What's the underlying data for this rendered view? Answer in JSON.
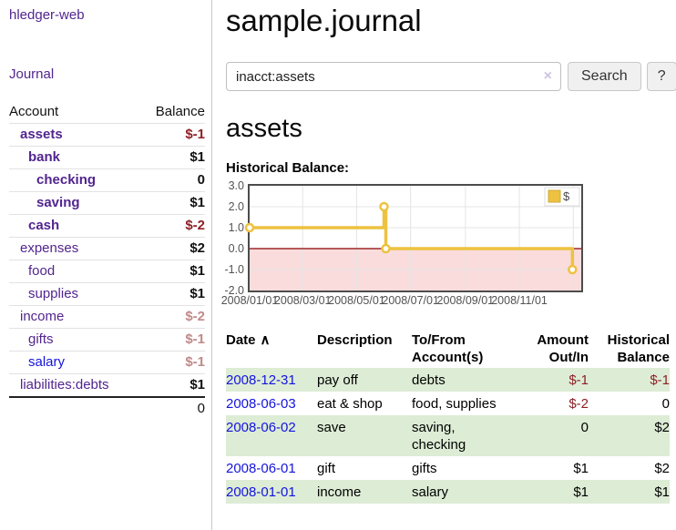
{
  "app": {
    "brand": "hledger-web"
  },
  "sidebar": {
    "journal_link": "Journal",
    "accounts": {
      "header_account": "Account",
      "header_balance": "Balance",
      "rows": [
        {
          "name": "assets",
          "depth": 0,
          "balance": "$-1",
          "emph": true,
          "balance_style": "neg-strong",
          "link_style": "purple"
        },
        {
          "name": "bank",
          "depth": 1,
          "balance": "$1",
          "emph": true,
          "balance_style": "pos",
          "link_style": "purple"
        },
        {
          "name": "checking",
          "depth": 2,
          "balance": "0",
          "emph": true,
          "balance_style": "pos",
          "link_style": "purple"
        },
        {
          "name": "saving",
          "depth": 2,
          "balance": "$1",
          "emph": true,
          "balance_style": "pos",
          "link_style": "purple"
        },
        {
          "name": "cash",
          "depth": 1,
          "balance": "$-2",
          "emph": true,
          "balance_style": "neg-strong",
          "link_style": "purple"
        },
        {
          "name": "expenses",
          "depth": 0,
          "balance": "$2",
          "emph": false,
          "balance_style": "pos",
          "link_style": "purple"
        },
        {
          "name": "food",
          "depth": 1,
          "balance": "$1",
          "emph": false,
          "balance_style": "pos",
          "link_style": "purple"
        },
        {
          "name": "supplies",
          "depth": 1,
          "balance": "$1",
          "emph": false,
          "balance_style": "pos",
          "link_style": "purple"
        },
        {
          "name": "income",
          "depth": 0,
          "balance": "$-2",
          "emph": false,
          "balance_style": "neg-dim",
          "link_style": "purple"
        },
        {
          "name": "gifts",
          "depth": 1,
          "balance": "$-1",
          "emph": false,
          "balance_style": "neg-dim",
          "link_style": "purple"
        },
        {
          "name": "salary",
          "depth": 1,
          "balance": "$-1",
          "emph": false,
          "balance_style": "neg-dim",
          "link_style": "blue"
        },
        {
          "name": "liabilities:debts",
          "depth": 0,
          "balance": "$1",
          "emph": false,
          "balance_style": "pos",
          "link_style": "purple"
        }
      ],
      "total": "0"
    }
  },
  "main": {
    "title": "sample.journal",
    "search": {
      "value": "inacct:assets",
      "clear_icon": "×",
      "search_button": "Search",
      "help_button": "?"
    },
    "account_heading": "assets",
    "chart_title": "Historical Balance:"
  },
  "chart_data": {
    "type": "line",
    "step": true,
    "title": "Historical Balance:",
    "series": [
      {
        "name": "$",
        "color": "#edc240",
        "points": [
          {
            "date": "2008-01-01",
            "value": 1
          },
          {
            "date": "2008-06-01",
            "value": 2
          },
          {
            "date": "2008-06-03",
            "value": 0
          },
          {
            "date": "2008-12-31",
            "value": -1
          }
        ]
      }
    ],
    "x_domain": [
      "2008-01-01",
      "2009-01-10"
    ],
    "ylim": [
      -2,
      3
    ],
    "yticks": [
      "3.0",
      "2.0",
      "1.0",
      "0.0",
      "-1.0",
      "-2.0"
    ],
    "xticks": [
      {
        "label": "2008/01/01",
        "date": "2008-01-01"
      },
      {
        "label": "2008/03/01",
        "date": "2008-03-01"
      },
      {
        "label": "2008/05/01",
        "date": "2008-05-01"
      },
      {
        "label": "2008/07/01",
        "date": "2008-07-01"
      },
      {
        "label": "2008/09/01",
        "date": "2008-09-01"
      },
      {
        "label": "2008/11/01",
        "date": "2008-11-01"
      }
    ],
    "extra_gridline_dates": [
      "2009-01-01"
    ],
    "legend": {
      "label": "$",
      "position": "top-right"
    },
    "colors": {
      "negative_region_fill": "#fadcdc",
      "zero_line": "#8b0000",
      "grid": "#e4e4e4",
      "border": "#4c4c4c",
      "tick_label": "#525252"
    }
  },
  "register": {
    "headers": {
      "date": "Date",
      "sort_icon": "∧",
      "description": "Description",
      "accounts": "To/From Account(s)",
      "amount": "Amount Out/In",
      "balance": "Historical Balance"
    },
    "rows": [
      {
        "date": "2008-12-31",
        "description": "pay off",
        "accounts": "debts",
        "amount": "$-1",
        "balance": "$-1"
      },
      {
        "date": "2008-06-03",
        "description": "eat & shop",
        "accounts": "food, supplies",
        "amount": "$-2",
        "balance": "0"
      },
      {
        "date": "2008-06-02",
        "description": "save",
        "accounts": "saving, checking",
        "amount": "0",
        "balance": "$2"
      },
      {
        "date": "2008-06-01",
        "description": "gift",
        "accounts": "gifts",
        "amount": "$1",
        "balance": "$2"
      },
      {
        "date": "2008-01-01",
        "description": "income",
        "accounts": "salary",
        "amount": "$1",
        "balance": "$1"
      }
    ]
  }
}
